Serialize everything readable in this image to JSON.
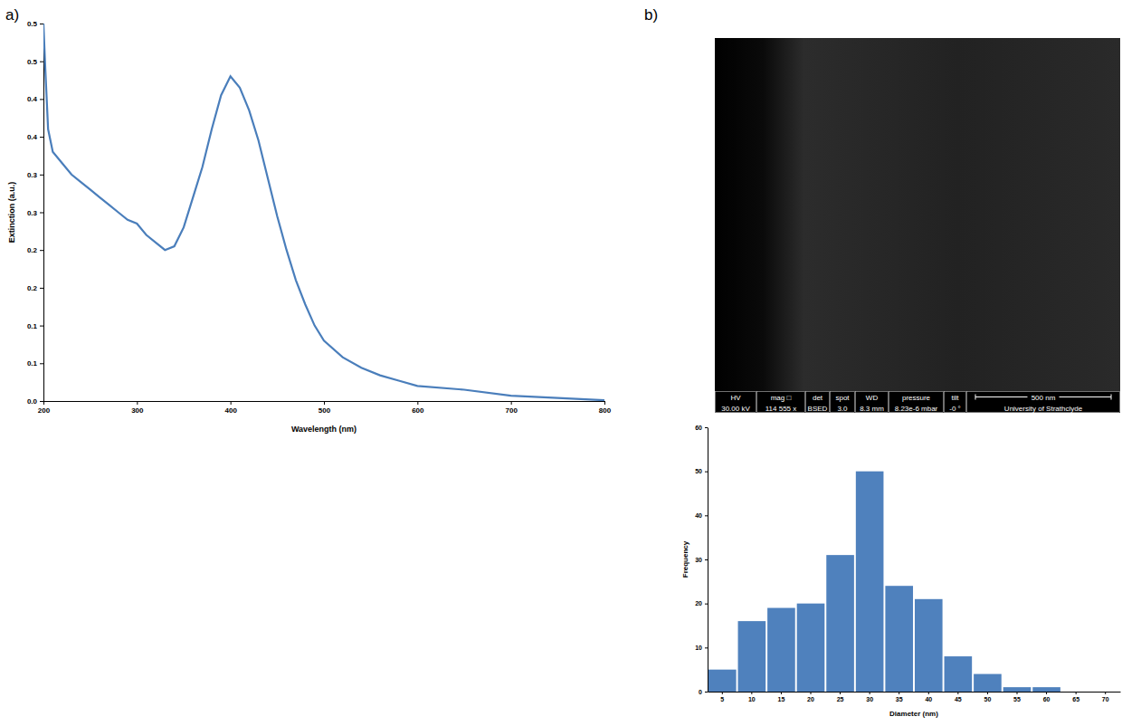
{
  "chart_data": [
    {
      "type": "line",
      "x_label": "Wavelength (nm)",
      "y_label": "Extinction (a.u.)",
      "x": [
        200,
        202,
        205,
        210,
        220,
        230,
        240,
        250,
        260,
        270,
        280,
        290,
        300,
        310,
        320,
        330,
        340,
        350,
        360,
        370,
        380,
        390,
        400,
        410,
        420,
        430,
        440,
        450,
        460,
        470,
        480,
        490,
        500,
        520,
        540,
        560,
        580,
        600,
        650,
        700,
        750,
        800
      ],
      "values": [
        0.5,
        0.44,
        0.36,
        0.33,
        0.315,
        0.3,
        0.29,
        0.28,
        0.27,
        0.26,
        0.25,
        0.24,
        0.235,
        0.22,
        0.21,
        0.2,
        0.205,
        0.23,
        0.27,
        0.31,
        0.36,
        0.405,
        0.43,
        0.415,
        0.385,
        0.345,
        0.295,
        0.245,
        0.2,
        0.16,
        0.128,
        0.1,
        0.08,
        0.058,
        0.044,
        0.034,
        0.027,
        0.02,
        0.015,
        0.007,
        0.004,
        0.001
      ],
      "color": "#4a7ebb",
      "xlim": [
        200,
        800
      ],
      "xticks": [
        200,
        300,
        400,
        500,
        600,
        700,
        800
      ],
      "ylim": [
        0,
        0.5
      ],
      "yticks": [
        {
          "value": 0,
          "label": "0.0"
        },
        {
          "value": 0.05,
          "label": "0.1"
        },
        0.1,
        {
          "value": 0.15,
          "label": "0.2"
        },
        0.2,
        {
          "value": 0.25,
          "label": "0.3"
        },
        0.3,
        {
          "value": 0.35,
          "label": "0.4"
        },
        0.4,
        {
          "value": 0.45,
          "label": "0.5"
        },
        0.5
      ],
      "grid": false
    },
    {
      "type": "bar",
      "x_label": "Diameter (nm)",
      "y_label": "Frequency",
      "categories": [
        5,
        10,
        15,
        20,
        25,
        30,
        35,
        40,
        45,
        50,
        55,
        60,
        65,
        70
      ],
      "values": [
        5,
        16,
        19,
        20,
        31,
        50,
        24,
        21,
        8,
        4,
        1,
        1,
        0,
        0
      ],
      "color": "#4f81bd",
      "ylim": [
        0,
        60
      ],
      "yticks": [
        0,
        10,
        20,
        30,
        40,
        50,
        60
      ],
      "grid": false
    }
  ],
  "panels": [
    "a)",
    "b)"
  ],
  "micrograph": {
    "fields": [
      {
        "label": "HV",
        "value": "30.00 kV"
      },
      {
        "label": "mag □",
        "value": "114 555 x"
      },
      {
        "label": "det",
        "value": "BSED"
      },
      {
        "label": "spot",
        "value": "3.0"
      },
      {
        "label": "WD",
        "value": "8.3 mm"
      },
      {
        "label": "pressure",
        "value": "8.23e-6 mbar"
      },
      {
        "label": "tilt",
        "value": "-0 °"
      }
    ],
    "scale_bar": "500 nm",
    "institution": "University of Strathclyde"
  }
}
